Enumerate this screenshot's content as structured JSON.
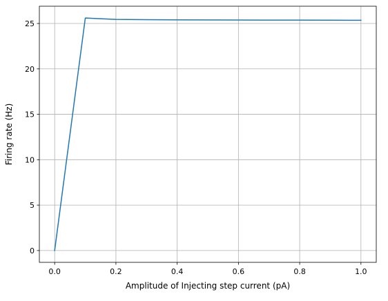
{
  "chart_data": {
    "type": "line",
    "title": "",
    "xlabel": "Amplitude of Injecting step current (pA)",
    "ylabel": "Firing rate (Hz)",
    "xlim": [
      -0.05,
      1.05
    ],
    "ylim": [
      -1.3,
      26.9
    ],
    "xticks": [
      0.0,
      0.2,
      0.4,
      0.6,
      0.8,
      1.0
    ],
    "xtick_labels": [
      "0.0",
      "0.2",
      "0.4",
      "0.6",
      "0.8",
      "1.0"
    ],
    "yticks": [
      0,
      5,
      10,
      15,
      20,
      25
    ],
    "ytick_labels": [
      "0",
      "5",
      "10",
      "15",
      "20",
      "25"
    ],
    "grid": true,
    "legend": "none",
    "series": [
      {
        "color": "#1f77b4",
        "x": [
          0.0,
          0.1,
          0.2,
          0.3,
          0.4,
          0.5,
          0.6,
          0.7,
          0.8,
          0.9,
          1.0
        ],
        "y": [
          0.0,
          25.6,
          25.45,
          25.42,
          25.4,
          25.39,
          25.38,
          25.37,
          25.37,
          25.36,
          25.35
        ]
      }
    ],
    "colors": {
      "grid": "#b0b0b0",
      "axes": "#000000",
      "background": "#ffffff"
    }
  }
}
